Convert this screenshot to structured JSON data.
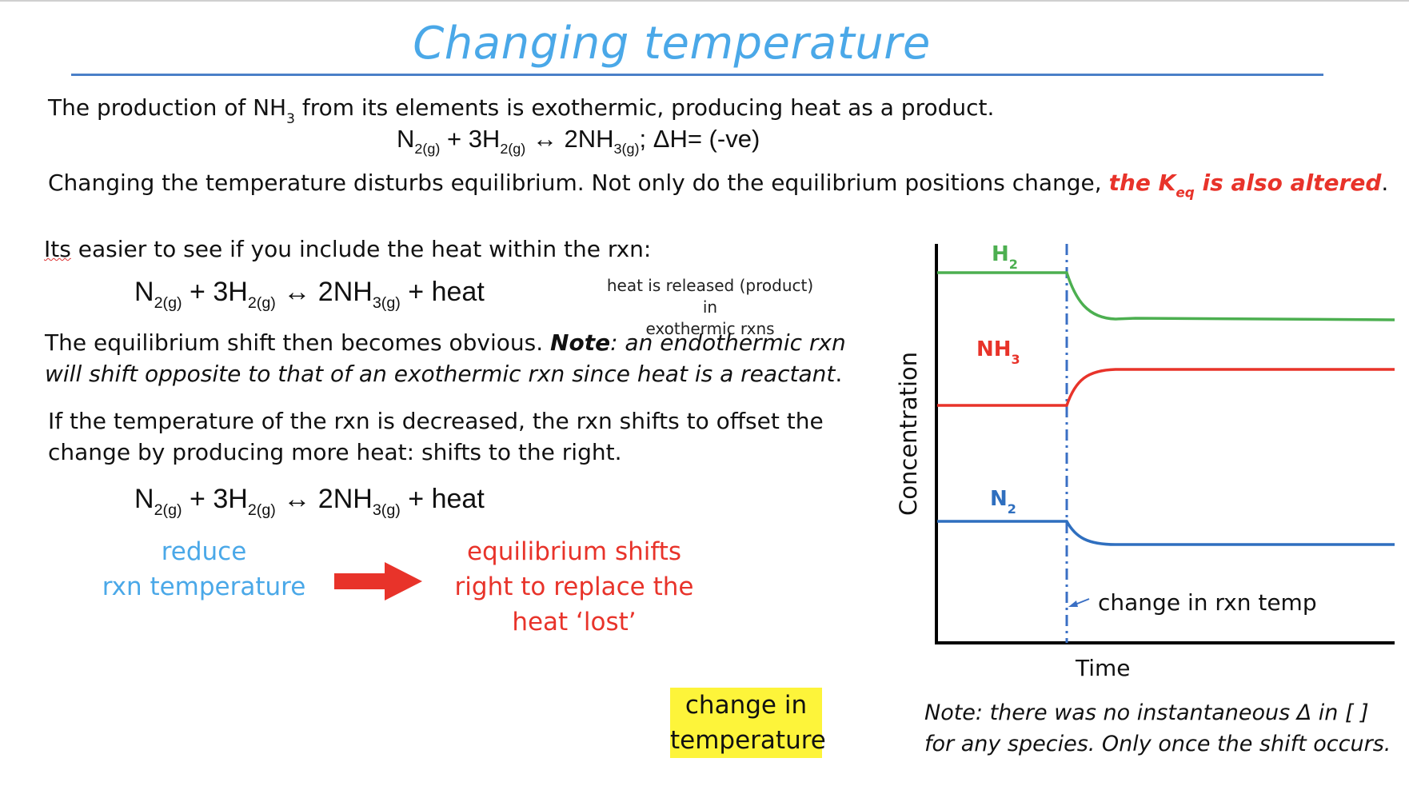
{
  "title": "Changing temperature",
  "intro": {
    "line1_a": "The production of NH",
    "line1_sub": "3",
    "line1_b": " from its elements is exothermic, producing heat as a product.",
    "equation": {
      "n2": "N",
      "n2_sub": "2(g)",
      "plus_h2": " + 3H",
      "h2_sub": "2(g)",
      "arrow": " ↔ ",
      "nh3": "2NH",
      "nh3_sub": "3(g)",
      "tail": "; ΔH= (-ve)"
    },
    "line2_a": "Changing the temperature disturbs equilibrium.  Not only do the equilibrium positions change, ",
    "line2_red_a": "the K",
    "line2_red_sub": "eq",
    "line2_red_b": " is also altered",
    "line2_end": "."
  },
  "section1": {
    "line_a": "Its",
    "line_b": " easier to see if you include the heat within the rxn:",
    "equation": {
      "n2": "N",
      "n2_sub": "2(g)",
      "plus_h2": " + 3H",
      "h2_sub": "2(g)",
      "arrow": " ↔ ",
      "nh3": "2NH",
      "nh3_sub": "3(g)",
      "heat": " + heat"
    },
    "side_note_1": "heat is released (product) in",
    "side_note_2": "exothermic rxns",
    "shift_a": "The equilibrium shift then becomes obvious.  ",
    "shift_note_label": "Note",
    "shift_b": ": an endothermic rxn",
    "shift_line2": "will shift opposite to that of an exothermic rxn since heat is a reactant",
    "shift_line2_end": "."
  },
  "section2": {
    "line1": "If the temperature of the rxn is decreased, the rxn shifts to offset the",
    "line2": "change by producing more heat: shifts to the right.",
    "equation": {
      "n2": "N",
      "n2_sub": "2(g)",
      "plus_h2": " + 3H",
      "h2_sub": "2(g)",
      "arrow": " ↔ ",
      "nh3": "2NH",
      "nh3_sub": "3(g)",
      "heat": " + heat"
    },
    "reduce_1": "reduce",
    "reduce_2": "rxn temperature",
    "shift_1": "equilibrium shifts",
    "shift_2": "right to replace the",
    "shift_3": "heat ‘lost’",
    "highlight_1": "change in",
    "highlight_2": "temperature"
  },
  "graph": {
    "ylabel": "Concentration",
    "xlabel": "Time",
    "h2_label": "H",
    "h2_sub": "2",
    "nh3_label": "NH",
    "nh3_sub": "3",
    "n2_label": "N",
    "n2_sub": "2",
    "annotation": "change in rxn temp",
    "colors": {
      "h2": "#4caf50",
      "nh3": "#e8332a",
      "n2": "#2f6fbf",
      "dash": "#3a6fc4"
    }
  },
  "note": {
    "line1": "Note: there was no instantaneous Δ in [ ]",
    "line2": "for any species. Only once the shift occurs."
  }
}
